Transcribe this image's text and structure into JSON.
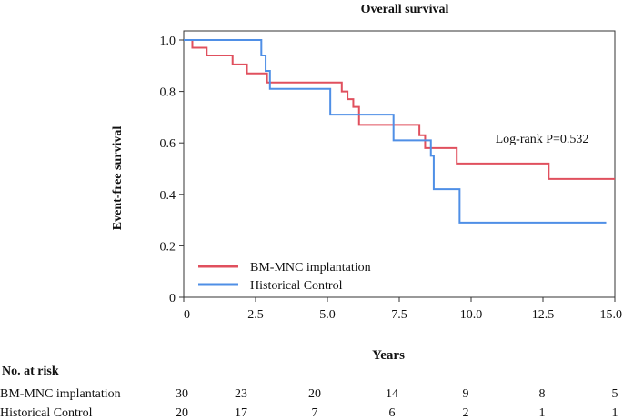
{
  "chart_data": {
    "type": "line",
    "title": "Overall survival",
    "xlabel": "Years",
    "ylabel": "Event-free survival",
    "xlim": [
      0,
      15
    ],
    "ylim": [
      0,
      1
    ],
    "xticks": [
      "0",
      "2.5",
      "5.0",
      "7.5",
      "10.0",
      "12.5",
      "15.0"
    ],
    "yticks": [
      "0",
      "0.2",
      "0.4",
      "0.6",
      "0.8",
      "1.0"
    ],
    "grid": false,
    "legend_position": "bottom-left",
    "annotation": "Log-rank P=0.532",
    "series": [
      {
        "name": "BM-MNC implantation",
        "color": "#e0505e",
        "step_points": [
          [
            0,
            1.0
          ],
          [
            0.3,
            0.97
          ],
          [
            0.8,
            0.94
          ],
          [
            1.7,
            0.905
          ],
          [
            2.2,
            0.87
          ],
          [
            2.9,
            0.835
          ],
          [
            3.4,
            0.835
          ],
          [
            5.5,
            0.8
          ],
          [
            5.7,
            0.77
          ],
          [
            5.9,
            0.74
          ],
          [
            6.1,
            0.67
          ],
          [
            8.2,
            0.63
          ],
          [
            8.4,
            0.58
          ],
          [
            9.5,
            0.52
          ],
          [
            12.7,
            0.46
          ],
          [
            15.0,
            0.46
          ]
        ]
      },
      {
        "name": "Historical Control",
        "color": "#4f8fe6",
        "step_points": [
          [
            0,
            1.0
          ],
          [
            2.7,
            0.94
          ],
          [
            2.85,
            0.88
          ],
          [
            3.0,
            0.81
          ],
          [
            5.1,
            0.71
          ],
          [
            7.3,
            0.61
          ],
          [
            8.6,
            0.55
          ],
          [
            8.7,
            0.42
          ],
          [
            9.6,
            0.29
          ],
          [
            14.7,
            0.29
          ]
        ]
      }
    ]
  },
  "at_risk": {
    "heading": "No. at risk",
    "rows": [
      {
        "label": "BM-MNC implantation",
        "counts": [
          "30",
          "23",
          "20",
          "14",
          "9",
          "8",
          "5"
        ]
      },
      {
        "label": "Historical Control",
        "counts": [
          "20",
          "17",
          "7",
          "6",
          "2",
          "1",
          "1"
        ]
      }
    ]
  }
}
